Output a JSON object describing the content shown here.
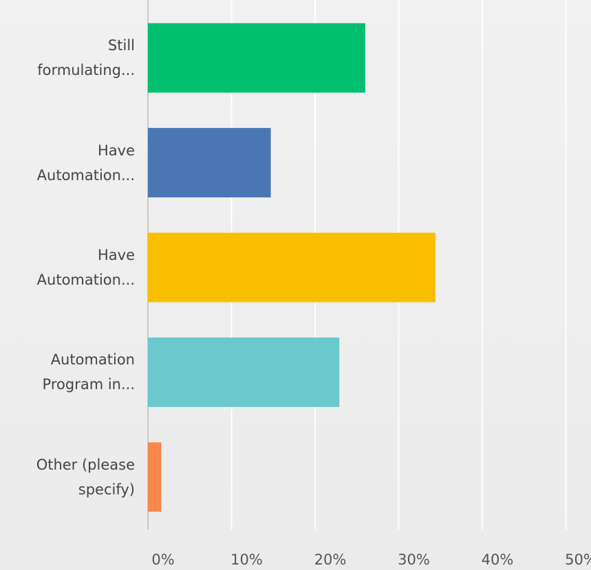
{
  "chart_data": {
    "type": "bar",
    "orientation": "horizontal",
    "categories": [
      "Still\nformulating...",
      "Have\nAutomation...",
      "Have\nAutomation...",
      "Automation\nProgram in...",
      "Other (please\nspecify)"
    ],
    "values": [
      26.0,
      14.7,
      34.4,
      22.9,
      1.6
    ],
    "colors": [
      "#00bf6f",
      "#4a77b4",
      "#f9be00",
      "#6bc8cd",
      "#f7884d"
    ],
    "xlim": [
      0,
      53
    ],
    "xticks": [
      {
        "value": 0,
        "label": "0%"
      },
      {
        "value": 10,
        "label": "10%"
      },
      {
        "value": 20,
        "label": "20%"
      },
      {
        "value": 30,
        "label": "30%"
      },
      {
        "value": 40,
        "label": "40%"
      },
      {
        "value": 50,
        "label": "50%"
      }
    ],
    "grid": true
  }
}
